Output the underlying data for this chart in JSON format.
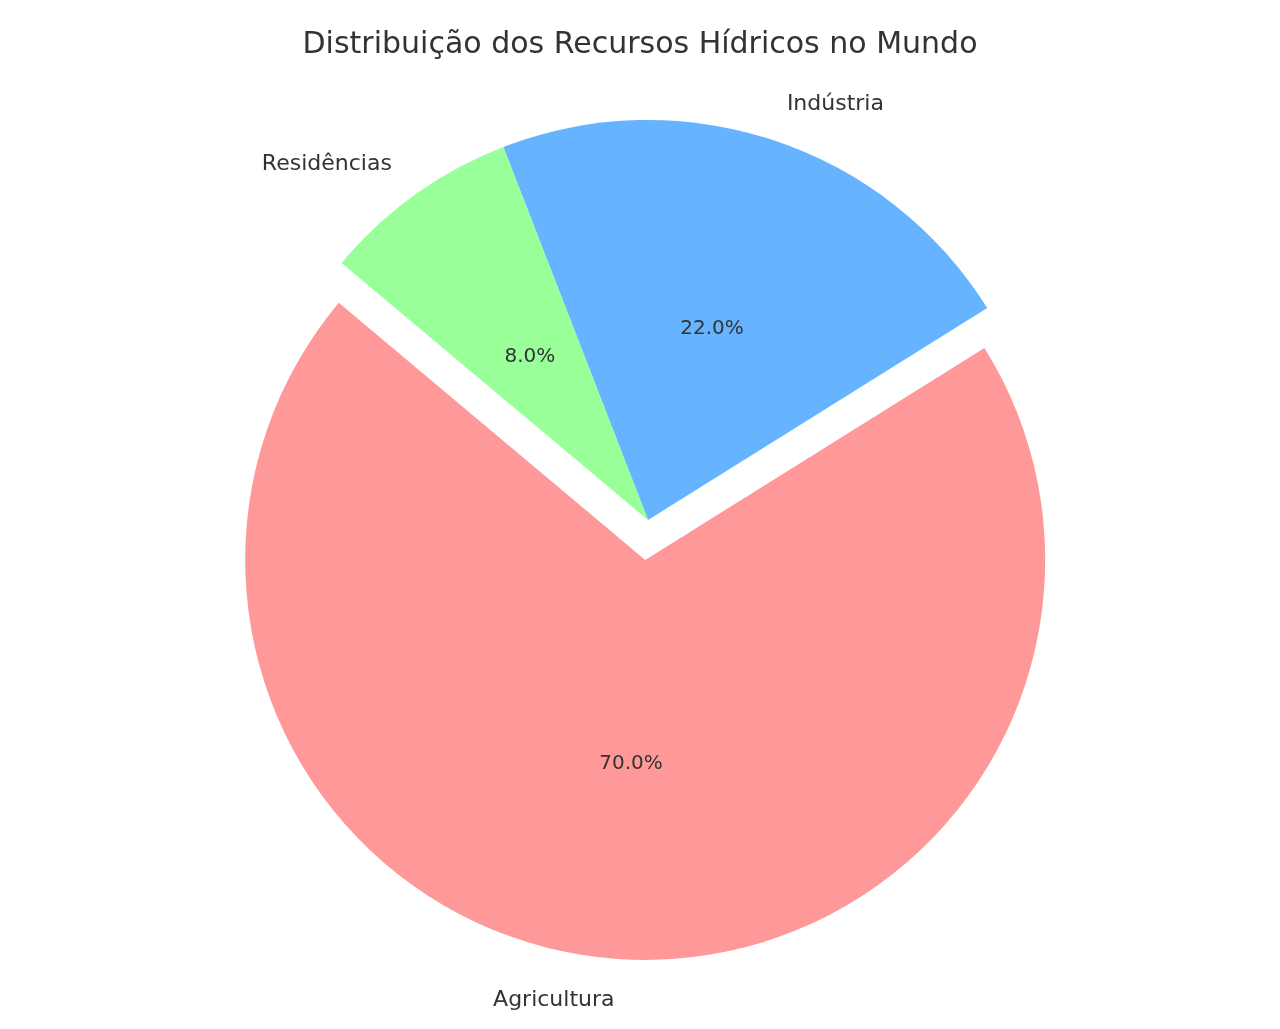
{
  "chart_data": {
    "type": "pie",
    "title": "Distribuição dos Recursos Hídricos no Mundo",
    "categories": [
      "Agricultura",
      "Indústria",
      "Residências"
    ],
    "values": [
      70,
      22,
      8
    ],
    "colors": [
      "#ff9999",
      "#66b3ff",
      "#99ff99"
    ],
    "value_labels": [
      "70.0%",
      "22.0%",
      "8.0%"
    ],
    "legend": false
  }
}
